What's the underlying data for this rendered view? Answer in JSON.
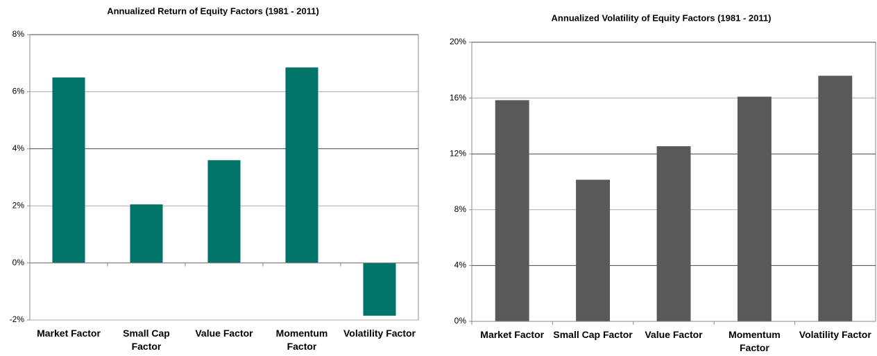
{
  "chart_data": [
    {
      "type": "bar",
      "title": "Annualized Return of Equity Factors (1981 - 2011)",
      "categories": [
        "Market Factor",
        "Small Cap Factor",
        "Value Factor",
        "Momentum Factor",
        "Volatility Factor"
      ],
      "values": [
        6.5,
        2.05,
        3.6,
        6.85,
        -1.85
      ],
      "color": "#007468",
      "ylim": [
        -2,
        8
      ],
      "yticks": [
        {
          "value": -2,
          "label": "-2%"
        },
        {
          "value": 0,
          "label": "0%"
        },
        {
          "value": 2,
          "label": "2%"
        },
        {
          "value": 4,
          "label": "4%"
        },
        {
          "value": 6,
          "label": "6%"
        },
        {
          "value": 8,
          "label": "8%"
        }
      ],
      "grid": true
    },
    {
      "type": "bar",
      "title": "Annualized Volatility of Equity Factors (1981 - 2011)",
      "categories": [
        "Market Factor",
        "Small Cap Factor",
        "Value Factor",
        "Momentum Factor",
        "Volatility Factor"
      ],
      "values": [
        15.85,
        10.15,
        12.55,
        16.1,
        17.6
      ],
      "color": "#595959",
      "ylim": [
        0,
        20
      ],
      "yticks": [
        {
          "value": 0,
          "label": "0%"
        },
        {
          "value": 4,
          "label": "4%"
        },
        {
          "value": 8,
          "label": "8%"
        },
        {
          "value": 12,
          "label": "12%"
        },
        {
          "value": 16,
          "label": "16%"
        },
        {
          "value": 20,
          "label": "20%"
        }
      ],
      "grid": true
    }
  ]
}
